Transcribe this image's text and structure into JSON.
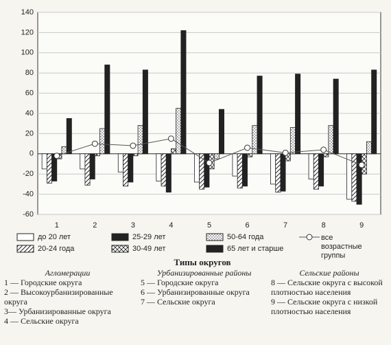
{
  "chart_data": {
    "type": "bar",
    "categories": [
      "1",
      "2",
      "3",
      "4",
      "5",
      "6",
      "7",
      "8",
      "9"
    ],
    "series": [
      {
        "name": "до 20 лет",
        "color": "#ffffff",
        "pattern": "none",
        "values": [
          -15,
          -15,
          -18,
          -27,
          -28,
          -22,
          -30,
          -25,
          -45
        ]
      },
      {
        "name": "20-24 года",
        "color": "#ffffff",
        "pattern": "diagonal",
        "values": [
          -29,
          -31,
          -32,
          -32,
          -35,
          -34,
          -38,
          -35,
          -47
        ]
      },
      {
        "name": "25-29 лет",
        "color": "#222222",
        "pattern": "none",
        "values": [
          -27,
          -25,
          -28,
          -38,
          -33,
          -32,
          -37,
          -32,
          -50
        ]
      },
      {
        "name": "30-49 лет",
        "color": "#ffffff",
        "pattern": "cross",
        "values": [
          -5,
          -2,
          -2,
          5,
          -15,
          -3,
          -7,
          -3,
          -20
        ]
      },
      {
        "name": "50-64 года",
        "color": "#ffffff",
        "pattern": "dots",
        "values": [
          7,
          25,
          28,
          45,
          -5,
          28,
          26,
          28,
          12
        ]
      },
      {
        "name": "65 лет и старше",
        "color": "#222222",
        "pattern": "none",
        "values": [
          35,
          88,
          83,
          122,
          44,
          77,
          79,
          74,
          83
        ]
      },
      {
        "name": "все возрастные группы",
        "color": "#555555",
        "mark": "line",
        "values": [
          -2,
          10,
          8,
          15,
          -9,
          6,
          1,
          4,
          -11
        ]
      }
    ],
    "ylim": [
      -60,
      140
    ],
    "yticks": [
      -60,
      -40,
      -20,
      0,
      20,
      40,
      60,
      80,
      100,
      120,
      140
    ],
    "grid": true
  },
  "types": {
    "title": "Типы округов",
    "groups": [
      {
        "heading": "Агломерации",
        "items": [
          "1 — Городские округа",
          "2 — Высокоурбанизированные округа",
          "3— Урбанизированные округа",
          "4 — Сельские округа"
        ]
      },
      {
        "heading": "Урбанизированные районы",
        "items": [
          "5 — Городские округа",
          "6 — Урбанизированные округа",
          "7 — Сельские округа"
        ]
      },
      {
        "heading": "Сельские районы",
        "items": [
          "8 — Сельские округа с высокой плотностью населения",
          "9 — Сельские округа с низкой плотностью населения"
        ]
      }
    ]
  }
}
